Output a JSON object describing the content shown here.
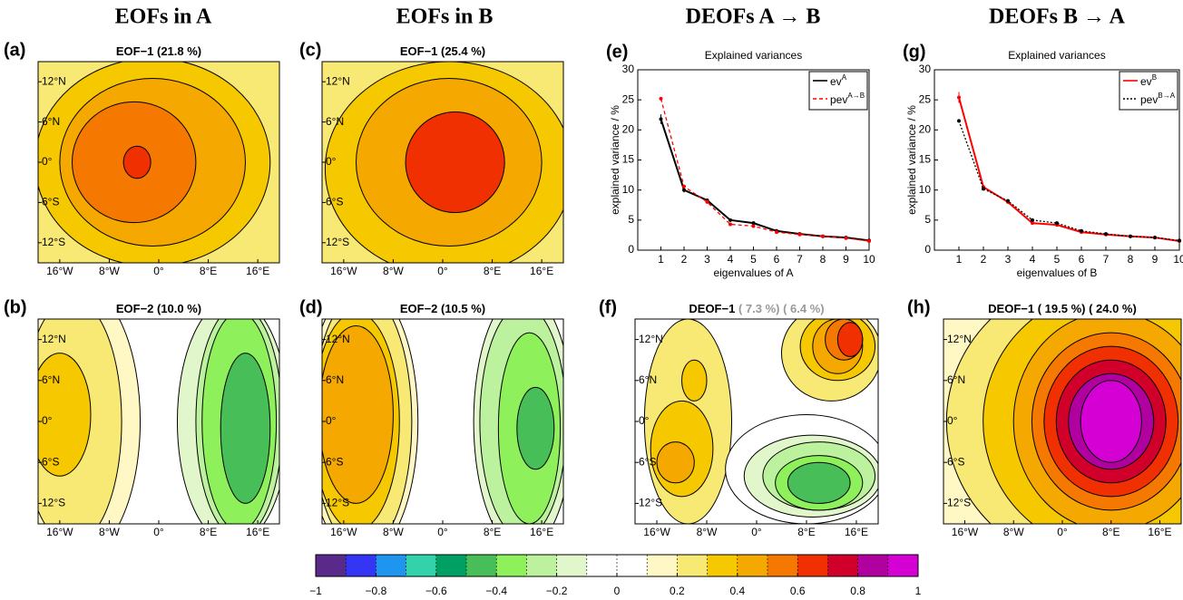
{
  "column_titles": [
    "EOFs in A",
    "EOFs in B",
    "DEOFs A → B",
    "DEOFs B → A"
  ],
  "map_axes": {
    "xlim": [
      -19.5,
      19.5
    ],
    "ylim": [
      -15,
      15
    ],
    "xticks": [
      {
        "value": -16,
        "label": "16°W"
      },
      {
        "value": -8,
        "label": "8°W"
      },
      {
        "value": 0,
        "label": "0°"
      },
      {
        "value": 8,
        "label": "8°E"
      },
      {
        "value": 16,
        "label": "16°E"
      }
    ],
    "yticks": [
      {
        "value": 12,
        "label": "12°N"
      },
      {
        "value": 6,
        "label": "6°N"
      },
      {
        "value": 0,
        "label": "0°"
      },
      {
        "value": -6,
        "label": "6°S"
      },
      {
        "value": -12,
        "label": "12°S"
      }
    ]
  },
  "maps": [
    {
      "label": "(a)",
      "title": "EOF−1 (21.8 %)"
    },
    {
      "label": "(b)",
      "title": "EOF−2 (10.0 %)"
    },
    {
      "label": "(c)",
      "title": "EOF−1 (25.4 %)"
    },
    {
      "label": "(d)",
      "title": "EOF−2 (10.5 %)"
    },
    {
      "label": "(f)",
      "title": "DEOF−1",
      "title_extra": "( 7.3 %) ( 6.4 %)"
    },
    {
      "label": "(h)",
      "title": "DEOF−1 ( 19.5 %) ( 24.0 %)"
    }
  ],
  "chart_data": [
    {
      "type": "line",
      "label": "(e)",
      "title": "Explained variances",
      "x_label": "eigenvalues of A",
      "y_label": "explained variance / %",
      "x": [
        1,
        2,
        3,
        4,
        5,
        6,
        7,
        8,
        9,
        10
      ],
      "xlim": [
        0,
        10
      ],
      "xticks": [
        1,
        2,
        3,
        4,
        5,
        6,
        7,
        8,
        9,
        10
      ],
      "ylim": [
        0,
        30
      ],
      "yticks": [
        0,
        5,
        10,
        15,
        20,
        25,
        30
      ],
      "legend": "upper right",
      "series": [
        {
          "name": "ev",
          "name_sup": "A",
          "color": "#000000",
          "dash": "solid",
          "values": [
            21.8,
            10.0,
            8.3,
            5.0,
            4.5,
            3.2,
            2.7,
            2.3,
            2.1,
            1.6
          ],
          "errors": [
            0.8,
            0.4,
            0.3,
            0.2,
            0.2,
            0.1,
            0.1,
            0.1,
            0.1,
            0.1
          ]
        },
        {
          "name": "pev",
          "name_sup": "A→B",
          "color": "#ff0000",
          "dash": "dashed",
          "values": [
            25.2,
            10.6,
            8.0,
            4.3,
            4.0,
            3.0,
            2.6,
            2.3,
            2.0,
            1.5
          ]
        }
      ]
    },
    {
      "type": "line",
      "label": "(g)",
      "title": "Explained variances",
      "x_label": "eigenvalues of B",
      "y_label": "explained variance / %",
      "x": [
        1,
        2,
        3,
        4,
        5,
        6,
        7,
        8,
        9,
        10
      ],
      "xlim": [
        0,
        10
      ],
      "xticks": [
        1,
        2,
        3,
        4,
        5,
        6,
        7,
        8,
        9,
        10
      ],
      "ylim": [
        0,
        30
      ],
      "yticks": [
        0,
        5,
        10,
        15,
        20,
        25,
        30
      ],
      "legend": "upper right",
      "series": [
        {
          "name": "ev",
          "name_sup": "B",
          "color": "#ff0000",
          "dash": "solid",
          "values": [
            25.4,
            10.5,
            8.0,
            4.5,
            4.2,
            3.0,
            2.6,
            2.3,
            2.1,
            1.5
          ],
          "errors": [
            0.9,
            0.4,
            0.3,
            0.2,
            0.2,
            0.1,
            0.1,
            0.1,
            0.1,
            0.1
          ]
        },
        {
          "name": "pev",
          "name_sup": "B→A",
          "color": "#000000",
          "dash": "dotted",
          "values": [
            21.5,
            10.2,
            8.2,
            5.0,
            4.5,
            3.2,
            2.7,
            2.3,
            2.1,
            1.6
          ]
        }
      ]
    }
  ],
  "colorbar": {
    "lim": [
      -1,
      1
    ],
    "colors": [
      "#5a2a8a",
      "#3535f5",
      "#1e96f0",
      "#34d2aa",
      "#00a064",
      "#48be58",
      "#8ef05a",
      "#bcf29e",
      "#e2f6cc",
      "#ffffff",
      "#ffffff",
      "#fff8c4",
      "#f8e874",
      "#f5c800",
      "#f5a800",
      "#f57800",
      "#f03000",
      "#d0002a",
      "#b000a0",
      "#d400d4"
    ],
    "ticks": [
      {
        "value": -1,
        "label": "−1"
      },
      {
        "value": -0.8,
        "label": "−0.8"
      },
      {
        "value": -0.6,
        "label": "−0.6"
      },
      {
        "value": -0.4,
        "label": "−0.4"
      },
      {
        "value": -0.2,
        "label": "−0.2"
      },
      0,
      0.2,
      0.4,
      0.6,
      0.8,
      1
    ]
  }
}
